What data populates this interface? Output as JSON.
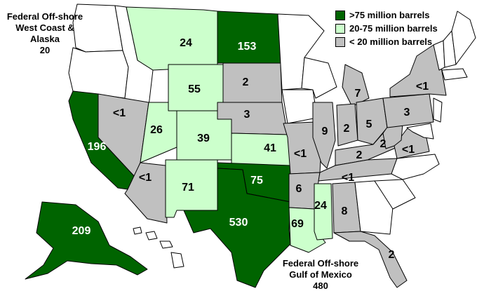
{
  "colors": {
    "high": "#006400",
    "mid": "#ccffcc",
    "low": "#c0c0c0",
    "none": "#ffffff"
  },
  "legend": [
    {
      "category": "high",
      "label": ">75 million barrels"
    },
    {
      "category": "mid",
      "label": "20-75 million barrels"
    },
    {
      "category": "low",
      "label": "< 20 million barrels"
    }
  ],
  "offshore": {
    "west": {
      "text": "Federal Off-shore\nWest Coast &\nAlaska\n20"
    },
    "gulf": {
      "text": "Federal Off-shore\nGulf of Mexico\n480"
    }
  },
  "states": [
    {
      "name": "Washington",
      "category": "none",
      "value": ""
    },
    {
      "name": "Oregon",
      "category": "none",
      "value": ""
    },
    {
      "name": "Idaho",
      "category": "none",
      "value": ""
    },
    {
      "name": "Nevada",
      "category": "low",
      "value": "<1"
    },
    {
      "name": "California",
      "category": "high",
      "value": "196"
    },
    {
      "name": "Arizona",
      "category": "low",
      "value": "<1"
    },
    {
      "name": "Utah",
      "category": "mid",
      "value": "26"
    },
    {
      "name": "Montana",
      "category": "mid",
      "value": "24"
    },
    {
      "name": "Wyoming",
      "category": "mid",
      "value": "55"
    },
    {
      "name": "Colorado",
      "category": "mid",
      "value": "39"
    },
    {
      "name": "New Mexico",
      "category": "mid",
      "value": "71"
    },
    {
      "name": "North Dakota",
      "category": "high",
      "value": "153"
    },
    {
      "name": "South Dakota",
      "category": "low",
      "value": "2"
    },
    {
      "name": "Nebraska",
      "category": "low",
      "value": "3"
    },
    {
      "name": "Kansas",
      "category": "mid",
      "value": "41"
    },
    {
      "name": "Oklahoma",
      "category": "high",
      "value": "75"
    },
    {
      "name": "Texas",
      "category": "high",
      "value": "530"
    },
    {
      "name": "Minnesota",
      "category": "none",
      "value": ""
    },
    {
      "name": "Iowa",
      "category": "none",
      "value": ""
    },
    {
      "name": "Missouri",
      "category": "low",
      "value": "<1"
    },
    {
      "name": "Arkansas",
      "category": "low",
      "value": "6"
    },
    {
      "name": "Louisiana",
      "category": "mid",
      "value": "69"
    },
    {
      "name": "Wisconsin",
      "category": "none",
      "value": ""
    },
    {
      "name": "Illinois",
      "category": "low",
      "value": "9"
    },
    {
      "name": "Michigan",
      "category": "low",
      "value": "7"
    },
    {
      "name": "Indiana",
      "category": "low",
      "value": "2"
    },
    {
      "name": "Ohio",
      "category": "low",
      "value": "5"
    },
    {
      "name": "Kentucky",
      "category": "low",
      "value": "2"
    },
    {
      "name": "Tennessee",
      "category": "low",
      "value": "<1"
    },
    {
      "name": "Mississippi",
      "category": "mid",
      "value": "24"
    },
    {
      "name": "Alabama",
      "category": "low",
      "value": "8"
    },
    {
      "name": "Florida",
      "category": "low",
      "value": "2"
    },
    {
      "name": "Georgia",
      "category": "none",
      "value": ""
    },
    {
      "name": "South Carolina",
      "category": "none",
      "value": ""
    },
    {
      "name": "North Carolina",
      "category": "none",
      "value": ""
    },
    {
      "name": "Virginia",
      "category": "low",
      "value": "<1"
    },
    {
      "name": "West Virginia",
      "category": "low",
      "value": "2"
    },
    {
      "name": "Pennsylvania",
      "category": "low",
      "value": "3"
    },
    {
      "name": "New York",
      "category": "low",
      "value": "<1"
    },
    {
      "name": "Maryland",
      "category": "none",
      "value": ""
    },
    {
      "name": "New Jersey",
      "category": "none",
      "value": ""
    },
    {
      "name": "Vermont",
      "category": "none",
      "value": ""
    },
    {
      "name": "New Hampshire",
      "category": "none",
      "value": ""
    },
    {
      "name": "Maine",
      "category": "none",
      "value": ""
    },
    {
      "name": "Massachusetts",
      "category": "none",
      "value": ""
    },
    {
      "name": "Alaska",
      "category": "high",
      "value": "209"
    },
    {
      "name": "Hawaii",
      "category": "none",
      "value": ""
    }
  ]
}
